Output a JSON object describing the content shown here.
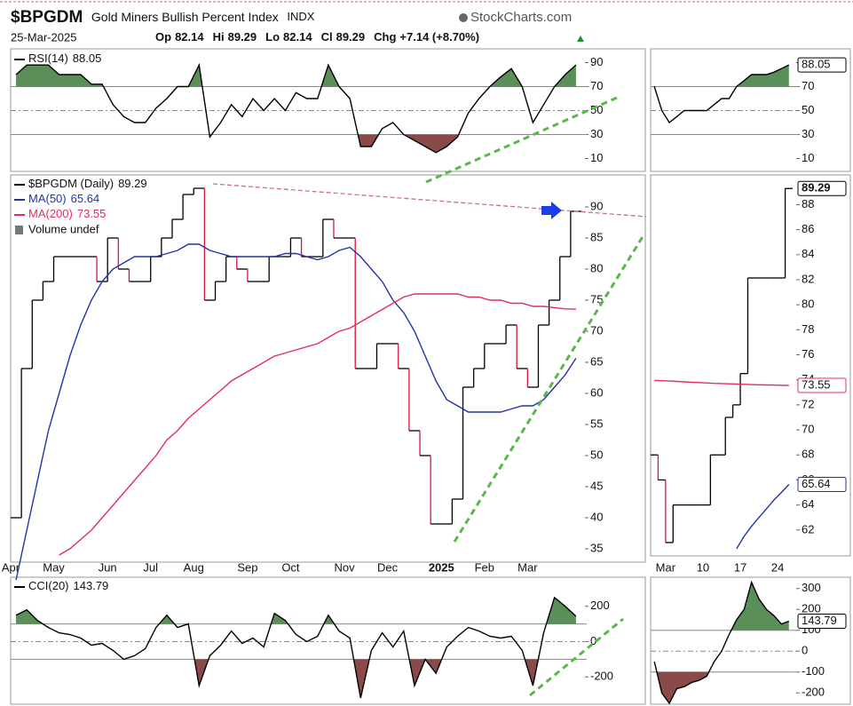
{
  "header": {
    "symbol": "$BPGDM",
    "name": "Gold Miners Bullish Percent Index",
    "exchange": "INDX",
    "source": "StockCharts.com",
    "date": "25-Mar-2025",
    "quote": [
      {
        "label": "Op",
        "value": 82.14
      },
      {
        "label": "Hi",
        "value": 89.29
      },
      {
        "label": "Lo",
        "value": 82.14
      },
      {
        "label": "Cl",
        "value": 89.29
      }
    ],
    "change_label": "Chg",
    "change": "+7.14 (+8.70%)"
  },
  "chart_data": [
    {
      "type": "line",
      "ylim": [
        0,
        100
      ],
      "yticks": [
        10,
        30,
        50,
        70,
        90
      ],
      "bands": [
        30,
        70
      ],
      "midline": 50,
      "fill_up": "#5a8f5a",
      "fill_down": "#8a4a4a",
      "series": [
        {
          "name": "RSI(14)",
          "color": "#000000",
          "values": [
            80,
            88,
            88,
            88,
            80,
            80,
            80,
            72,
            72,
            55,
            45,
            40,
            40,
            52,
            60,
            70,
            70,
            88,
            28,
            40,
            55,
            45,
            60,
            50,
            60,
            50,
            65,
            60,
            60,
            88,
            70,
            60,
            20,
            20,
            35,
            40,
            30,
            25,
            20,
            15,
            20,
            28,
            48,
            60,
            70,
            78,
            85,
            70,
            40,
            55,
            70,
            80,
            88.05
          ]
        }
      ]
    },
    {
      "type": "line",
      "ylim": [
        33,
        95
      ],
      "yticks": [
        35,
        40,
        45,
        50,
        55,
        60,
        65,
        70,
        75,
        80,
        85,
        90
      ],
      "categories": [
        "Apr",
        null,
        null,
        null,
        "May",
        null,
        null,
        null,
        null,
        "Jun",
        null,
        null,
        null,
        "Jul",
        null,
        null,
        null,
        "Aug",
        null,
        null,
        null,
        null,
        "Sep",
        null,
        null,
        null,
        "Oct",
        null,
        null,
        null,
        null,
        "Nov",
        null,
        null,
        null,
        "Dec",
        null,
        null,
        null,
        null,
        "2025",
        null,
        null,
        null,
        "Feb",
        null,
        null,
        null,
        "Mar",
        null,
        null,
        null,
        null
      ],
      "legend_extra": "Volume undef",
      "series": [
        {
          "name": "$BPGDM (Daily)",
          "style": "step",
          "color": "#000000",
          "down_color": "#dc143c",
          "values": [
            40,
            64,
            75,
            78,
            82,
            82,
            82,
            82,
            78,
            85,
            80,
            78,
            78,
            82,
            85,
            88,
            92,
            93,
            75,
            78,
            82,
            80,
            78,
            78,
            82,
            82,
            85,
            82,
            82,
            88,
            85,
            85,
            64,
            64,
            68,
            68,
            64,
            54,
            50,
            39,
            39,
            43,
            61,
            64,
            68,
            68,
            71,
            64,
            61,
            71,
            75,
            82,
            89.29
          ]
        },
        {
          "name": "MA(50)",
          "color": "#2233aa",
          "values": [
            30,
            38,
            46,
            54,
            60,
            66,
            71,
            75,
            78,
            80,
            81,
            82,
            82,
            82,
            82.5,
            83,
            84,
            84,
            83,
            82.5,
            82,
            82,
            82,
            82,
            82,
            82.5,
            82.5,
            82,
            81.5,
            82,
            83,
            83.5,
            82,
            80,
            78,
            75,
            73,
            70,
            66,
            62,
            59,
            58,
            57,
            57,
            57,
            57,
            57.5,
            58,
            58,
            59,
            61,
            63,
            65.64
          ]
        },
        {
          "name": "MA(200)",
          "color": "#e0305a",
          "values": [
            null,
            null,
            null,
            null,
            34,
            35,
            36.5,
            38,
            40,
            42,
            44,
            46,
            48,
            50,
            52.5,
            54,
            56,
            57.5,
            59,
            60.5,
            62,
            63,
            64,
            65,
            66,
            66.5,
            67,
            67.5,
            68,
            69,
            70,
            70.5,
            71.5,
            72.5,
            73.5,
            74.5,
            75.5,
            76,
            76,
            76,
            76,
            76,
            75.5,
            75.5,
            75,
            75,
            74.5,
            74.5,
            74,
            74,
            73.8,
            73.6,
            73.55
          ]
        }
      ]
    },
    {
      "type": "line",
      "ylim": [
        -350,
        360
      ],
      "yticks": [
        -200,
        0,
        200
      ],
      "bands": [
        -100,
        100
      ],
      "midline": 0,
      "fill_up": "#5a8f5a",
      "fill_down": "#8a4a4a",
      "series": [
        {
          "name": "CCI(20)",
          "color": "#000000",
          "values": [
            150,
            180,
            120,
            80,
            50,
            40,
            20,
            -20,
            -10,
            -50,
            -100,
            -80,
            -40,
            80,
            150,
            80,
            100,
            -250,
            -80,
            -20,
            60,
            -10,
            20,
            -30,
            160,
            120,
            40,
            0,
            30,
            150,
            60,
            20,
            -320,
            -50,
            50,
            -30,
            60,
            -250,
            -100,
            -180,
            -30,
            30,
            80,
            60,
            30,
            20,
            30,
            -50,
            -250,
            50,
            250,
            200,
            143.79
          ]
        }
      ]
    },
    {
      "type": "line",
      "ylim": [
        0,
        100
      ],
      "yticks": [
        10,
        30,
        50,
        70,
        90
      ],
      "bands": [
        30,
        70
      ],
      "midline": 50,
      "fill_up": "#5a8f5a",
      "fill_down": "#8a4a4a",
      "series": [
        {
          "color": "#000000",
          "values": [
            70,
            50,
            40,
            45,
            50,
            50,
            50,
            50,
            55,
            60,
            60,
            70,
            75,
            80,
            80,
            80,
            82,
            85,
            88.05
          ]
        }
      ]
    },
    {
      "type": "line",
      "ylim": [
        60,
        90.3
      ],
      "yticks": [
        62,
        64,
        66,
        68,
        70,
        72,
        74,
        76,
        78,
        80,
        82,
        84,
        86,
        88
      ],
      "categories": [
        null,
        null,
        "Mar",
        null,
        null,
        null,
        null,
        "10",
        null,
        null,
        null,
        null,
        "17",
        null,
        null,
        null,
        null,
        "24",
        null
      ],
      "series": [
        {
          "style": "step",
          "color": "#000000",
          "down_color": "#dc143c",
          "values": [
            68,
            66,
            61,
            64,
            64,
            64,
            64,
            64,
            68,
            68,
            71,
            72,
            74.5,
            82.14,
            82.14,
            82.14,
            82.14,
            82.14,
            89.29
          ]
        },
        {
          "color": "#e0305a",
          "values": [
            73.95,
            73.93,
            73.9,
            73.87,
            73.84,
            73.81,
            73.78,
            73.75,
            73.72,
            73.7,
            73.68,
            73.66,
            73.64,
            73.62,
            73.6,
            73.59,
            73.58,
            73.56,
            73.55
          ]
        },
        {
          "color": "#2233aa",
          "values": [
            null,
            null,
            null,
            null,
            null,
            null,
            null,
            null,
            null,
            null,
            null,
            60.5,
            61.5,
            62.3,
            63,
            63.7,
            64.4,
            65,
            65.64
          ]
        }
      ]
    },
    {
      "type": "line",
      "ylim": [
        -250,
        350
      ],
      "yticks": [
        -200,
        -100,
        0,
        100,
        200,
        300
      ],
      "bands": [
        -100,
        100
      ],
      "midline": 0,
      "fill_up": "#5a8f5a",
      "fill_down": "#8a4a4a",
      "series": [
        {
          "color": "#000000",
          "values": [
            -50,
            -200,
            -250,
            -180,
            -170,
            -150,
            -140,
            -120,
            -50,
            0,
            80,
            150,
            200,
            330,
            250,
            200,
            170,
            130,
            143.79
          ]
        }
      ]
    }
  ]
}
